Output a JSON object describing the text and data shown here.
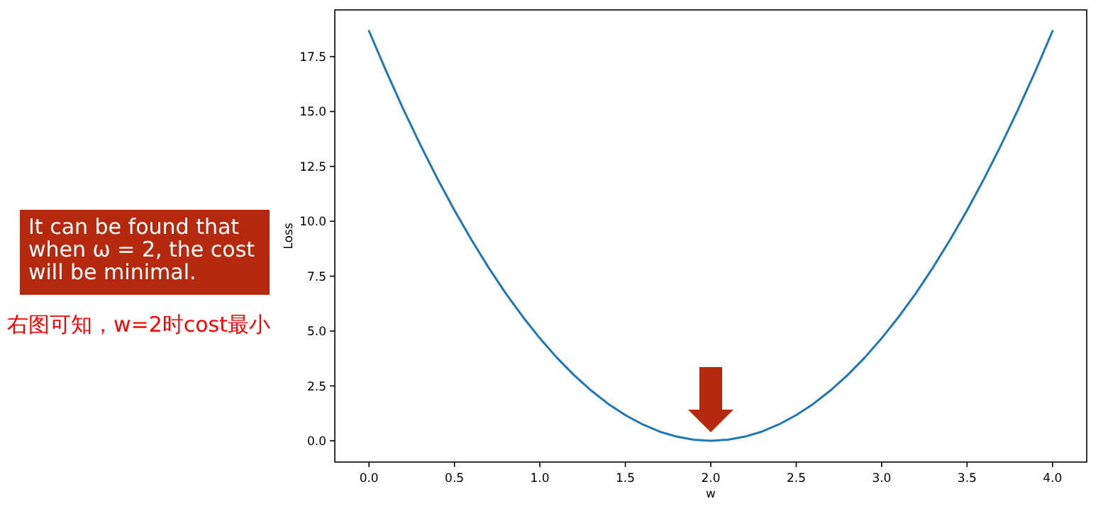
{
  "chart_data": {
    "type": "line",
    "xlabel": "w",
    "ylabel": "Loss",
    "x": [
      0,
      0.1,
      0.2,
      0.3,
      0.4,
      0.5,
      0.6,
      0.7,
      0.8,
      0.9,
      1.0,
      1.1,
      1.2,
      1.3,
      1.4,
      1.5,
      1.6,
      1.7,
      1.8,
      1.9,
      2.0,
      2.1,
      2.2,
      2.3,
      2.4,
      2.5,
      2.6,
      2.7,
      2.8,
      2.9,
      3.0,
      3.1,
      3.2,
      3.3,
      3.4,
      3.5,
      3.6,
      3.7,
      3.8,
      3.9,
      4.0
    ],
    "series": [
      {
        "color": "#1f77b4",
        "values": [
          18.67,
          16.85,
          15.12,
          13.49,
          11.95,
          10.5,
          9.15,
          7.89,
          6.72,
          5.65,
          4.67,
          3.78,
          2.99,
          2.29,
          1.68,
          1.17,
          0.75,
          0.42,
          0.19,
          0.05,
          0,
          0.05,
          0.19,
          0.42,
          0.75,
          1.17,
          1.68,
          2.29,
          2.99,
          3.78,
          4.67,
          5.65,
          6.72,
          7.89,
          9.15,
          10.5,
          11.95,
          13.49,
          15.12,
          16.85,
          18.67
        ]
      }
    ],
    "xlim": [
      -0.2,
      4.2
    ],
    "ylim": [
      -0.97,
      19.63
    ],
    "xticks": [
      {
        "value": 0,
        "label": "0.0"
      },
      {
        "value": 0.5,
        "label": "0.5"
      },
      {
        "value": 1,
        "label": "1.0"
      },
      {
        "value": 1.5,
        "label": "1.5"
      },
      {
        "value": 2,
        "label": "2.0"
      },
      {
        "value": 2.5,
        "label": "2.5"
      },
      {
        "value": 3,
        "label": "3.0"
      },
      {
        "value": 3.5,
        "label": "3.5"
      },
      {
        "value": 4,
        "label": "4.0"
      }
    ],
    "yticks": [
      {
        "value": 0,
        "label": "0.0"
      },
      {
        "value": 2.5,
        "label": "2.5"
      },
      {
        "value": 5,
        "label": "5.0"
      },
      {
        "value": 7.5,
        "label": "7.5"
      },
      {
        "value": 10,
        "label": "10.0"
      },
      {
        "value": 12.5,
        "label": "12.5"
      },
      {
        "value": 15,
        "label": "15.0"
      },
      {
        "value": 17.5,
        "label": "17.5"
      }
    ],
    "grid": false,
    "marker": "none",
    "line_style": "solid",
    "annotations": [
      "It can be found that\nwhen ω = 2, the cost\nwill be minimal.",
      "右图可知，w=2时cost最小"
    ]
  }
}
